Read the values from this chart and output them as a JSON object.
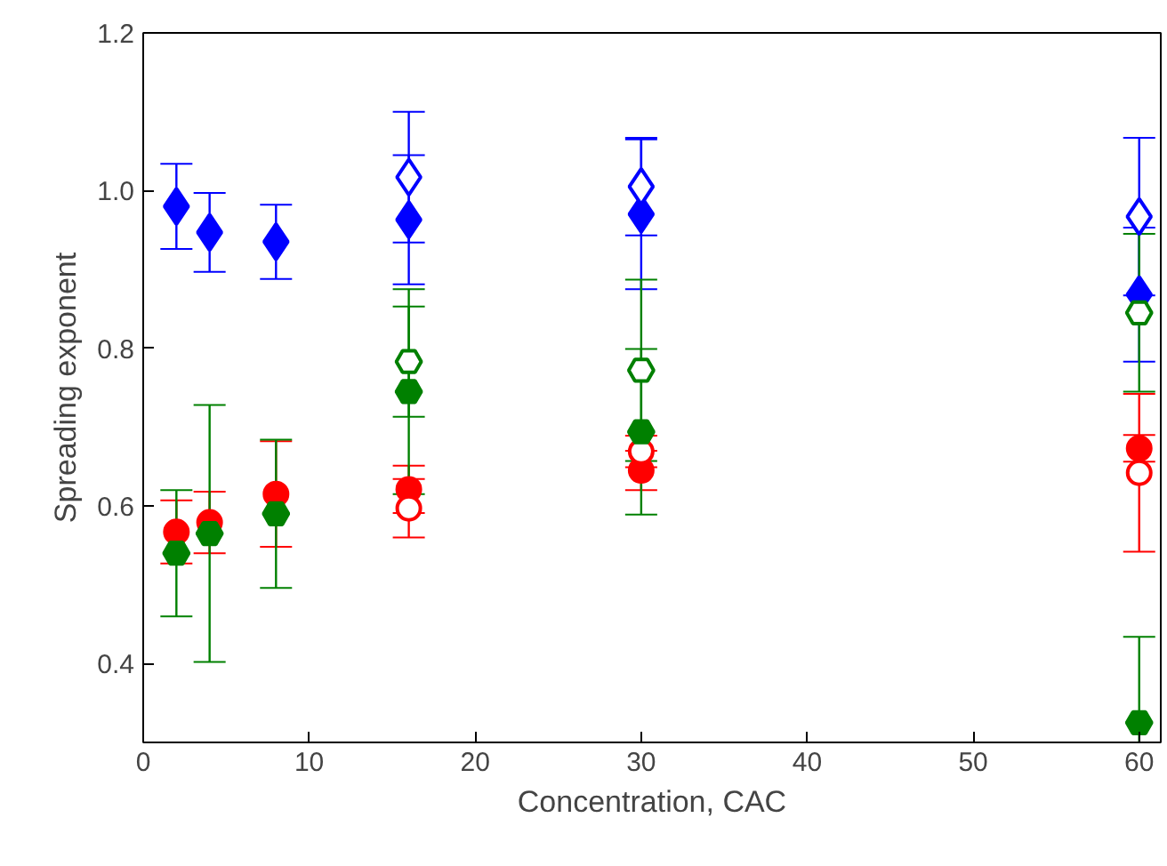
{
  "chart_data": {
    "type": "scatter",
    "xlabel": "Concentration, CAC",
    "ylabel": "Spreading exponent",
    "xlim": [
      0,
      61.3
    ],
    "ylim": [
      0.3,
      1.2
    ],
    "xticks": [
      0,
      10,
      20,
      30,
      40,
      50,
      60
    ],
    "yticks": [
      0.4,
      0.6,
      0.8,
      {
        "value": 1,
        "label": "1.0"
      },
      1.2
    ],
    "grid": false,
    "series": [
      {
        "color": "#0000ff",
        "marker": "diamond",
        "x": [
          2,
          4,
          8,
          16,
          30,
          60
        ],
        "values": [
          0.98,
          0.947,
          0.935,
          0.963,
          0.97,
          0.868
        ],
        "errors": [
          0.054,
          0.05,
          0.047,
          0.082,
          0.095,
          0.085
        ]
      },
      {
        "color": "#0000ff",
        "marker": "diamond",
        "x": [
          16,
          30,
          60
        ],
        "values": [
          1.017,
          1.005,
          0.967
        ],
        "errors": [
          0.083,
          0.062,
          0.1
        ]
      },
      {
        "color": "#ff0000",
        "marker": "circle",
        "x": [
          2,
          4,
          8,
          16,
          30,
          60
        ],
        "values": [
          0.567,
          0.579,
          0.615,
          0.621,
          0.645,
          0.673
        ],
        "errors": [
          0.04,
          0.039,
          0.067,
          0.03,
          0.025,
          0.017
        ]
      },
      {
        "color": "#ff0000",
        "marker": "circle",
        "x": [
          16,
          30,
          60
        ],
        "values": [
          0.597,
          0.669,
          0.642
        ],
        "errors": [
          0.037,
          0.02,
          0.1
        ]
      },
      {
        "color": "#008000",
        "x": [
          2,
          4,
          8,
          16,
          30,
          60
        ],
        "values": [
          0.54,
          0.565,
          0.59,
          0.745,
          0.694,
          0.325
        ],
        "errors": [
          0.08,
          0.163,
          0.094,
          0.13,
          0.105,
          [
            0.3,
            0.434
          ]
        ]
      },
      {
        "color": "#008000",
        "x": [
          16,
          30,
          60
        ],
        "values": [
          0.783,
          0.772,
          0.845
        ],
        "errors": [
          0.07,
          0.115,
          0.1
        ]
      }
    ]
  }
}
